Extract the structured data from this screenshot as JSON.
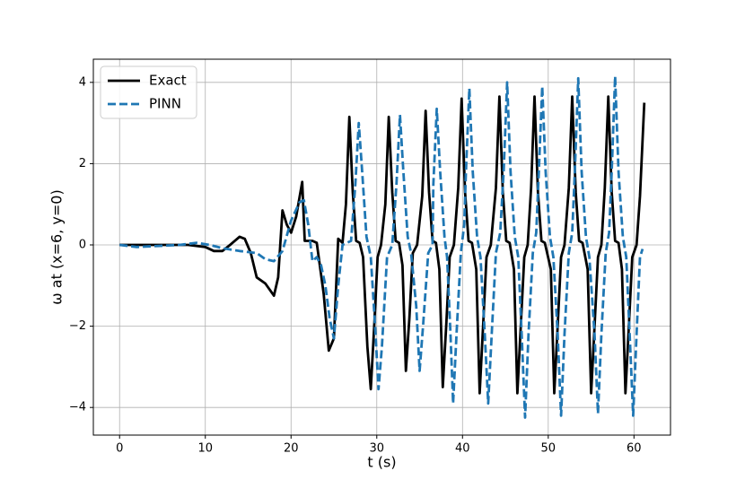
{
  "chart_data": {
    "type": "line",
    "xlabel": "t (s)",
    "ylabel": "ω at (x=6, y=0)",
    "xlim": [
      -3.06,
      64.26
    ],
    "ylim": [
      -4.68,
      4.57
    ],
    "xticks": [
      0,
      10,
      20,
      30,
      40,
      50,
      60
    ],
    "yticks": [
      {
        "value": -4,
        "label": "−4"
      },
      {
        "value": -2,
        "label": "−2"
      },
      0,
      2,
      4
    ],
    "grid": true,
    "legend": "upper left",
    "series": [
      {
        "name": "Exact",
        "color": "#000000",
        "style": "solid",
        "x": [
          0,
          5,
          8,
          10,
          11,
          12,
          13,
          14,
          14.6,
          15.3,
          16,
          17,
          18,
          18.5,
          19,
          19.5,
          20,
          20.6,
          21.3,
          21.6,
          22.5,
          23,
          23.8,
          24.4,
          25,
          25.5,
          26,
          26.4,
          26.8,
          27.2,
          27.6,
          28,
          28.4,
          28.9,
          29.3,
          29.7,
          30.1,
          30.5,
          31,
          31.4,
          31.8,
          32.2,
          32.6,
          33,
          33.4,
          33.8,
          34.2,
          34.7,
          35.3,
          35.7,
          36.1,
          36.5,
          36.9,
          37.3,
          37.7,
          38.1,
          38.5,
          39,
          39.5,
          39.9,
          40.3,
          40.7,
          41.1,
          41.6,
          42,
          42.4,
          42.8,
          43.3,
          43.9,
          44.3,
          44.7,
          45.1,
          45.5,
          46,
          46.4,
          46.8,
          47.2,
          47.6,
          48,
          48.4,
          48.8,
          49.2,
          49.6,
          50.3,
          50.7,
          51.1,
          51.5,
          51.9,
          52.4,
          52.8,
          53.2,
          53.6,
          54,
          54.6,
          55,
          55.4,
          55.8,
          56.2,
          56.6,
          57,
          57.4,
          57.8,
          58.2,
          58.6,
          59,
          59.4,
          59.8,
          60.3,
          60.7,
          61.2
        ],
        "values": [
          0,
          0,
          0,
          -0.05,
          -0.15,
          -0.15,
          0.02,
          0.2,
          0.15,
          -0.2,
          -0.8,
          -0.95,
          -1.25,
          -0.8,
          0.85,
          0.5,
          0.3,
          0.7,
          1.55,
          0.1,
          0.1,
          0.05,
          -1.2,
          -2.6,
          -2.3,
          0.15,
          0.05,
          1.0,
          3.15,
          1.3,
          0.1,
          0.05,
          -0.3,
          -2.5,
          -3.55,
          -2.0,
          -0.3,
          0,
          1.0,
          3.15,
          1.3,
          0.1,
          0.05,
          -0.5,
          -3.1,
          -1.8,
          -0.2,
          0,
          1.2,
          3.3,
          1.3,
          0.1,
          0.05,
          -0.6,
          -3.5,
          -2.0,
          -0.3,
          0,
          1.4,
          3.6,
          1.3,
          0.1,
          0.05,
          -0.6,
          -3.65,
          -2.0,
          -0.3,
          0,
          1.4,
          3.65,
          1.3,
          0.1,
          0.05,
          -0.6,
          -3.65,
          -2.0,
          -0.3,
          0,
          1.4,
          3.65,
          1.3,
          0.1,
          0.05,
          -0.6,
          -3.65,
          -2.0,
          -0.3,
          0,
          1.4,
          3.65,
          1.3,
          0.1,
          0.05,
          -0.6,
          -3.65,
          -2.0,
          -0.3,
          0,
          1.4,
          3.65,
          1.3,
          0.1,
          0.05,
          -0.6,
          -3.65,
          -2.0,
          -0.3,
          0,
          1.2,
          3.5
        ]
      },
      {
        "name": "PINN",
        "color": "#1f77b4",
        "style": "dashed",
        "x": [
          0,
          2,
          4,
          7,
          9,
          10.5,
          12,
          14,
          16,
          17,
          18,
          19,
          20,
          21,
          21.5,
          22,
          22.5,
          23,
          23.5,
          24,
          24.5,
          25,
          25.5,
          26,
          27,
          27.5,
          27.9,
          28.3,
          28.8,
          29.3,
          29.8,
          30.2,
          30.6,
          31.2,
          31.8,
          32.3,
          32.7,
          33.1,
          33.6,
          34,
          34.6,
          35,
          35.4,
          36,
          36.5,
          36.6,
          37,
          37.4,
          37.9,
          38.2,
          38.6,
          38.9,
          39.3,
          39.8,
          40.2,
          40.4,
          40.8,
          41.2,
          41.7,
          42.1,
          42.6,
          43,
          43.4,
          43.9,
          44.4,
          44.8,
          45.2,
          45.6,
          46.1,
          46.5,
          46.9,
          47.3,
          47.7,
          48.2,
          48.6,
          48.9,
          49.3,
          49.7,
          50.2,
          50.6,
          51.1,
          51.5,
          51.9,
          52.4,
          52.8,
          53.1,
          53.5,
          53.9,
          54.4,
          54.8,
          55.4,
          55.8,
          56.2,
          56.7,
          57.1,
          57.4,
          57.8,
          58.2,
          58.7,
          59.1,
          59.5,
          59.9,
          60.3,
          60.7,
          61
        ],
        "values": [
          0,
          -0.05,
          -0.03,
          0,
          0.05,
          0,
          -0.08,
          -0.15,
          -0.2,
          -0.35,
          -0.4,
          -0.15,
          0.6,
          1.05,
          1.1,
          0.5,
          -0.4,
          -0.3,
          -0.5,
          -1.0,
          -1.8,
          -2.3,
          -1.0,
          0,
          0.1,
          1.5,
          3.0,
          1.8,
          0.2,
          -0.3,
          -2.0,
          -3.55,
          -2.5,
          -0.3,
          0,
          1.5,
          3.2,
          1.8,
          0.2,
          -0.2,
          -1.5,
          -3.1,
          -2.0,
          -0.2,
          0,
          1.5,
          3.35,
          1.8,
          0.2,
          -0.3,
          -2.2,
          -3.9,
          -2.2,
          -0.2,
          0.5,
          1.8,
          3.85,
          1.8,
          0.2,
          -0.3,
          -2.2,
          -3.9,
          -2.2,
          -0.2,
          0.3,
          1.8,
          4.0,
          1.8,
          0.2,
          -0.3,
          -2.2,
          -4.25,
          -2.2,
          -0.2,
          0.3,
          1.8,
          3.9,
          1.8,
          0.2,
          -0.3,
          -2.2,
          -4.2,
          -2.2,
          -0.2,
          0.3,
          1.8,
          4.1,
          1.8,
          0.2,
          -0.3,
          -2.2,
          -4.15,
          -2.2,
          -0.2,
          0.3,
          1.8,
          4.15,
          1.8,
          0.2,
          -0.3,
          -2.2,
          -4.2,
          -2.2,
          -0.3,
          -0.1
        ]
      }
    ]
  }
}
